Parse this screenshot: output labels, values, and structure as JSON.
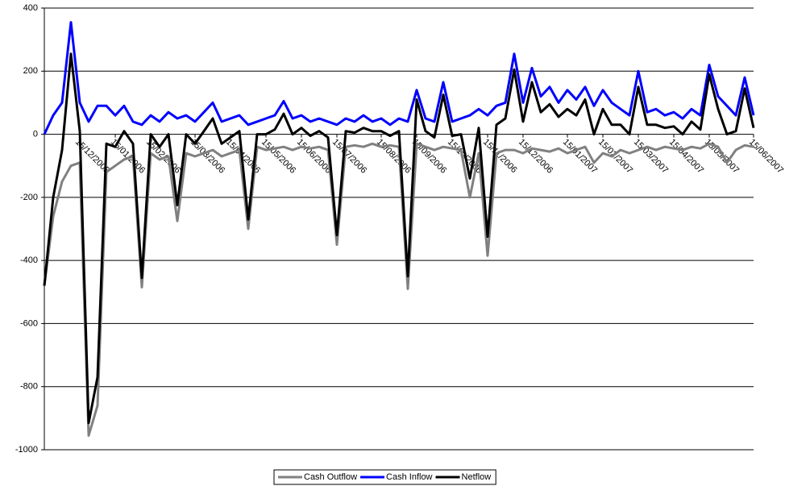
{
  "chart_data": {
    "type": "line",
    "categories": [
      null,
      null,
      null,
      null,
      "15/12/2005",
      null,
      null,
      null,
      "15/01/2006",
      null,
      null,
      null,
      "15/02/2006",
      null,
      null,
      null,
      null,
      "15/03/2006",
      null,
      null,
      null,
      "15/04/2006",
      null,
      null,
      null,
      "15/05/2006",
      null,
      null,
      null,
      "15/06/2006",
      null,
      null,
      null,
      "15/07/2006",
      null,
      null,
      null,
      null,
      "15/08/2006",
      null,
      null,
      null,
      "15/09/2006",
      null,
      null,
      null,
      "15/10/2006",
      null,
      null,
      null,
      "15/11/2006",
      null,
      null,
      null,
      "15/12/2006",
      null,
      null,
      null,
      null,
      "15/01/2007",
      null,
      null,
      null,
      "15/02/2007",
      null,
      null,
      null,
      "15/03/2007",
      null,
      null,
      null,
      "15/04/2007",
      null,
      null,
      null,
      "15/05/2007",
      null,
      null,
      null,
      null,
      "15/06/2007"
    ],
    "series": [
      {
        "name": "Cash Outflow",
        "color": "#808080",
        "values": [
          -480,
          -260,
          -150,
          -100,
          -90,
          -955,
          -860,
          -120,
          -100,
          -80,
          -70,
          -485,
          -60,
          -80,
          -70,
          -275,
          -60,
          -70,
          -60,
          -50,
          -70,
          -60,
          -50,
          -300,
          -40,
          -50,
          -45,
          -40,
          -50,
          -40,
          -45,
          -40,
          -50,
          -350,
          -40,
          -35,
          -40,
          -30,
          -40,
          -35,
          -40,
          -490,
          -30,
          -40,
          -50,
          -40,
          -45,
          -50,
          -200,
          -60,
          -385,
          -60,
          -50,
          -50,
          -60,
          -45,
          -50,
          -55,
          -45,
          -60,
          -50,
          -40,
          -90,
          -60,
          -70,
          -50,
          -60,
          -50,
          -40,
          -50,
          -40,
          -45,
          -50,
          -40,
          -45,
          -30,
          -40,
          -90,
          -50,
          -35,
          -40
        ]
      },
      {
        "name": "Cash Inflow",
        "color": "#0000ff",
        "values": [
          0,
          60,
          100,
          355,
          100,
          40,
          90,
          90,
          60,
          90,
          40,
          30,
          60,
          40,
          70,
          50,
          60,
          40,
          70,
          100,
          40,
          50,
          60,
          30,
          40,
          50,
          60,
          105,
          50,
          60,
          40,
          50,
          40,
          30,
          50,
          40,
          60,
          40,
          50,
          30,
          50,
          40,
          140,
          50,
          40,
          165,
          40,
          50,
          60,
          80,
          60,
          90,
          100,
          255,
          100,
          210,
          120,
          150,
          100,
          140,
          110,
          150,
          90,
          140,
          100,
          80,
          60,
          200,
          70,
          80,
          60,
          70,
          50,
          80,
          60,
          220,
          120,
          90,
          60,
          180,
          60
        ]
      },
      {
        "name": "Netflow",
        "color": "#000000",
        "values": [
          -480,
          -200,
          -50,
          255,
          10,
          -915,
          -770,
          -30,
          -40,
          10,
          -30,
          -455,
          0,
          -40,
          0,
          -225,
          0,
          -30,
          10,
          50,
          -30,
          -10,
          10,
          -270,
          0,
          0,
          15,
          65,
          0,
          20,
          -5,
          10,
          -10,
          -320,
          10,
          5,
          20,
          10,
          10,
          -5,
          10,
          -450,
          110,
          10,
          -10,
          125,
          -5,
          0,
          -140,
          20,
          -325,
          30,
          50,
          205,
          40,
          165,
          70,
          95,
          55,
          80,
          60,
          110,
          0,
          80,
          30,
          30,
          0,
          150,
          30,
          30,
          20,
          25,
          0,
          40,
          15,
          190,
          80,
          0,
          10,
          145,
          20
        ]
      }
    ],
    "ylim": [
      -1000,
      400
    ],
    "yticks": [
      -1000,
      -800,
      -600,
      -400,
      -200,
      0,
      200,
      400
    ],
    "grid": true,
    "legend": "bottom"
  }
}
